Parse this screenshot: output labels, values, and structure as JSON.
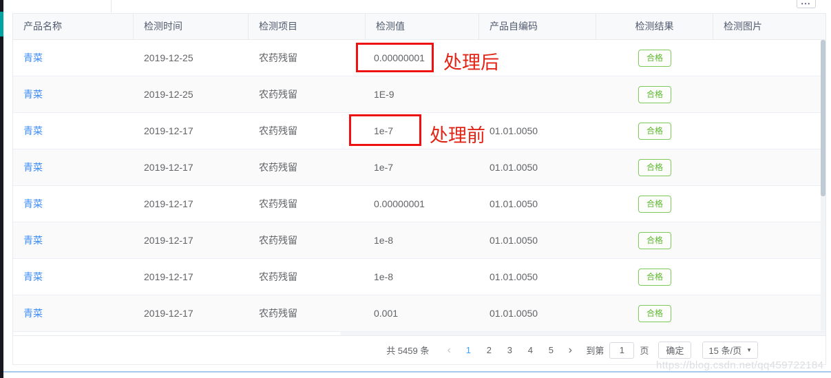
{
  "colors": {
    "link_blue": "#3e8df5",
    "success_green": "#5fb832",
    "annotation_red": "#ee1111",
    "active_page_blue": "#409eff",
    "left_strip_teal": "#00a2a2"
  },
  "topbar": {
    "more_icon": "•••"
  },
  "table": {
    "headers": [
      "产品名称",
      "检测时间",
      "检测项目",
      "检测值",
      "产品自编码",
      "检测结果",
      "检测图片"
    ],
    "rows": [
      {
        "name": "青菜",
        "time": "2019-12-25",
        "item": "农药残留",
        "value": "0.00000001",
        "code": "",
        "result": "合格"
      },
      {
        "name": "青菜",
        "time": "2019-12-25",
        "item": "农药残留",
        "value": "1E-9",
        "code": "",
        "result": "合格"
      },
      {
        "name": "青菜",
        "time": "2019-12-17",
        "item": "农药残留",
        "value": "1e-7",
        "code": "01.01.0050",
        "result": "合格"
      },
      {
        "name": "青菜",
        "time": "2019-12-17",
        "item": "农药残留",
        "value": "1e-7",
        "code": "01.01.0050",
        "result": "合格"
      },
      {
        "name": "青菜",
        "time": "2019-12-17",
        "item": "农药残留",
        "value": "0.00000001",
        "code": "01.01.0050",
        "result": "合格"
      },
      {
        "name": "青菜",
        "time": "2019-12-17",
        "item": "农药残留",
        "value": "1e-8",
        "code": "01.01.0050",
        "result": "合格"
      },
      {
        "name": "青菜",
        "time": "2019-12-17",
        "item": "农药残留",
        "value": "1e-8",
        "code": "01.01.0050",
        "result": "合格"
      },
      {
        "name": "青菜",
        "time": "2019-12-17",
        "item": "农药残留",
        "value": "0.001",
        "code": "01.01.0050",
        "result": "合格"
      }
    ]
  },
  "annotations": {
    "after_label": "处理后",
    "before_label": "处理前"
  },
  "pagination": {
    "total": "共 5459 条",
    "prev_icon": "‹",
    "pages": [
      "1",
      "2",
      "3",
      "4",
      "5"
    ],
    "active_page": "1",
    "next_icon": "›",
    "goto_label": "到第",
    "goto_value": "1",
    "page_label": "页",
    "confirm_label": "确定",
    "page_size": "15 条/页",
    "caret_icon": "▼"
  },
  "watermark": "https://blog.csdn.net/qq459722184"
}
